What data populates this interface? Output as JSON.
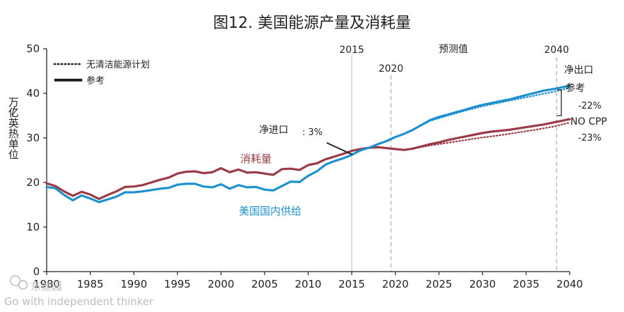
{
  "chart_data": {
    "type": "line",
    "title": "图12. 美国能源产量及消耗量",
    "ylabel": "万亿英热单位",
    "ylabel_prefix": "/",
    "xlim": [
      1980,
      2040
    ],
    "ylim": [
      0,
      50
    ],
    "x_ticks": [
      1980,
      1985,
      1990,
      1995,
      2000,
      2005,
      2010,
      2015,
      2020,
      2025,
      2030,
      2035,
      2040
    ],
    "y_ticks": [
      0,
      10,
      20,
      30,
      40,
      50
    ],
    "grid": false,
    "legend_position": "top-left",
    "legend": [
      {
        "label": "无清洁能源计划",
        "style": "dotted"
      },
      {
        "label": "参考",
        "style": "solid"
      }
    ],
    "vlines": [
      {
        "x": 2015,
        "label": "2015",
        "style": "solid"
      },
      {
        "x": 2019.5,
        "label": "2020",
        "style": "dashed"
      },
      {
        "x": 2038.5,
        "label": "2040",
        "style": "dashed"
      }
    ],
    "region_label": "预测值",
    "series": [
      {
        "name": "消耗量",
        "color": "#9b3a44",
        "style": "solid",
        "x": [
          1980,
          1981,
          1982,
          1983,
          1984,
          1985,
          1986,
          1987,
          1988,
          1989,
          1990,
          1991,
          1992,
          1993,
          1994,
          1995,
          1996,
          1997,
          1998,
          1999,
          2000,
          2001,
          2002,
          2003,
          2004,
          2005,
          2006,
          2007,
          2008,
          2009,
          2010,
          2011,
          2012,
          2013,
          2014,
          2015,
          2016,
          2017,
          2018,
          2019,
          2020,
          2021,
          2022,
          2023,
          2024,
          2025,
          2026,
          2027,
          2028,
          2029,
          2030,
          2031,
          2032,
          2033,
          2034,
          2035,
          2036,
          2037,
          2038,
          2039,
          2040
        ],
        "values": [
          19.8,
          19.2,
          18.0,
          17.0,
          17.9,
          17.3,
          16.3,
          17.2,
          18.0,
          19.0,
          19.1,
          19.4,
          20.0,
          20.6,
          21.1,
          22.0,
          22.4,
          22.5,
          22.1,
          22.3,
          23.2,
          22.3,
          22.9,
          22.2,
          22.3,
          22.0,
          21.7,
          23.0,
          23.1,
          22.8,
          23.9,
          24.3,
          25.2,
          25.8,
          26.4,
          27.1,
          27.5,
          27.8,
          27.9,
          27.7,
          27.5,
          27.3,
          27.6,
          28.1,
          28.6,
          29.0,
          29.5,
          29.9,
          30.3,
          30.7,
          31.1,
          31.4,
          31.6,
          31.8,
          32.1,
          32.4,
          32.7,
          33.0,
          33.4,
          33.8,
          34.2
        ]
      },
      {
        "name": "美国国内供给",
        "color": "#1e8fcf",
        "style": "solid",
        "x": [
          1980,
          1981,
          1982,
          1983,
          1984,
          1985,
          1986,
          1987,
          1988,
          1989,
          1990,
          1991,
          1992,
          1993,
          1994,
          1995,
          1996,
          1997,
          1998,
          1999,
          2000,
          2001,
          2002,
          2003,
          2004,
          2005,
          2006,
          2007,
          2008,
          2009,
          2010,
          2011,
          2012,
          2013,
          2014,
          2015,
          2016,
          2017,
          2018,
          2019,
          2020,
          2021,
          2022,
          2023,
          2024,
          2025,
          2026,
          2027,
          2028,
          2029,
          2030,
          2031,
          2032,
          2033,
          2034,
          2035,
          2036,
          2037,
          2038,
          2039,
          2040
        ],
        "values": [
          19.0,
          18.7,
          17.2,
          16.0,
          17.1,
          16.4,
          15.6,
          16.2,
          16.8,
          17.8,
          17.8,
          18.0,
          18.3,
          18.6,
          18.8,
          19.5,
          19.7,
          19.7,
          19.1,
          18.9,
          19.6,
          18.6,
          19.4,
          18.9,
          19.0,
          18.4,
          18.2,
          19.2,
          20.2,
          20.1,
          21.5,
          22.5,
          24.0,
          24.8,
          25.4,
          26.2,
          27.2,
          27.8,
          28.6,
          29.3,
          30.2,
          30.9,
          31.8,
          32.9,
          34.0,
          34.7,
          35.2,
          35.8,
          36.3,
          36.9,
          37.4,
          37.8,
          38.2,
          38.6,
          39.1,
          39.6,
          40.1,
          40.6,
          40.9,
          41.3,
          41.7
        ]
      },
      {
        "name": "无清洁能源计划",
        "color": "#9b3a44",
        "style": "dotted",
        "x": [
          2022,
          2024,
          2026,
          2028,
          2030,
          2032,
          2034,
          2036,
          2038,
          2040
        ],
        "values": [
          27.6,
          28.3,
          28.9,
          29.5,
          30.1,
          30.6,
          31.2,
          31.8,
          32.5,
          33.4
        ]
      },
      {
        "name": "无清洁能源计划",
        "color": "#1e8fcf",
        "style": "dotted",
        "x": [
          2022,
          2024,
          2026,
          2028,
          2030,
          2032,
          2034,
          2036,
          2038,
          2040
        ],
        "values": [
          31.8,
          33.8,
          35.0,
          36.1,
          37.1,
          37.9,
          38.7,
          39.5,
          40.3,
          41.2
        ]
      }
    ],
    "annotations": {
      "net_import_label": "净进口",
      "net_import_value": ": 3%",
      "right_net_export": "净出口",
      "right_reference": "参考",
      "right_pct_top": "-22%",
      "right_no_cpp": "NO CPP",
      "right_pct_bottom": "-23%"
    }
  },
  "watermark": {
    "line1": "东迪园",
    "line2": "Go with independent thinker"
  }
}
